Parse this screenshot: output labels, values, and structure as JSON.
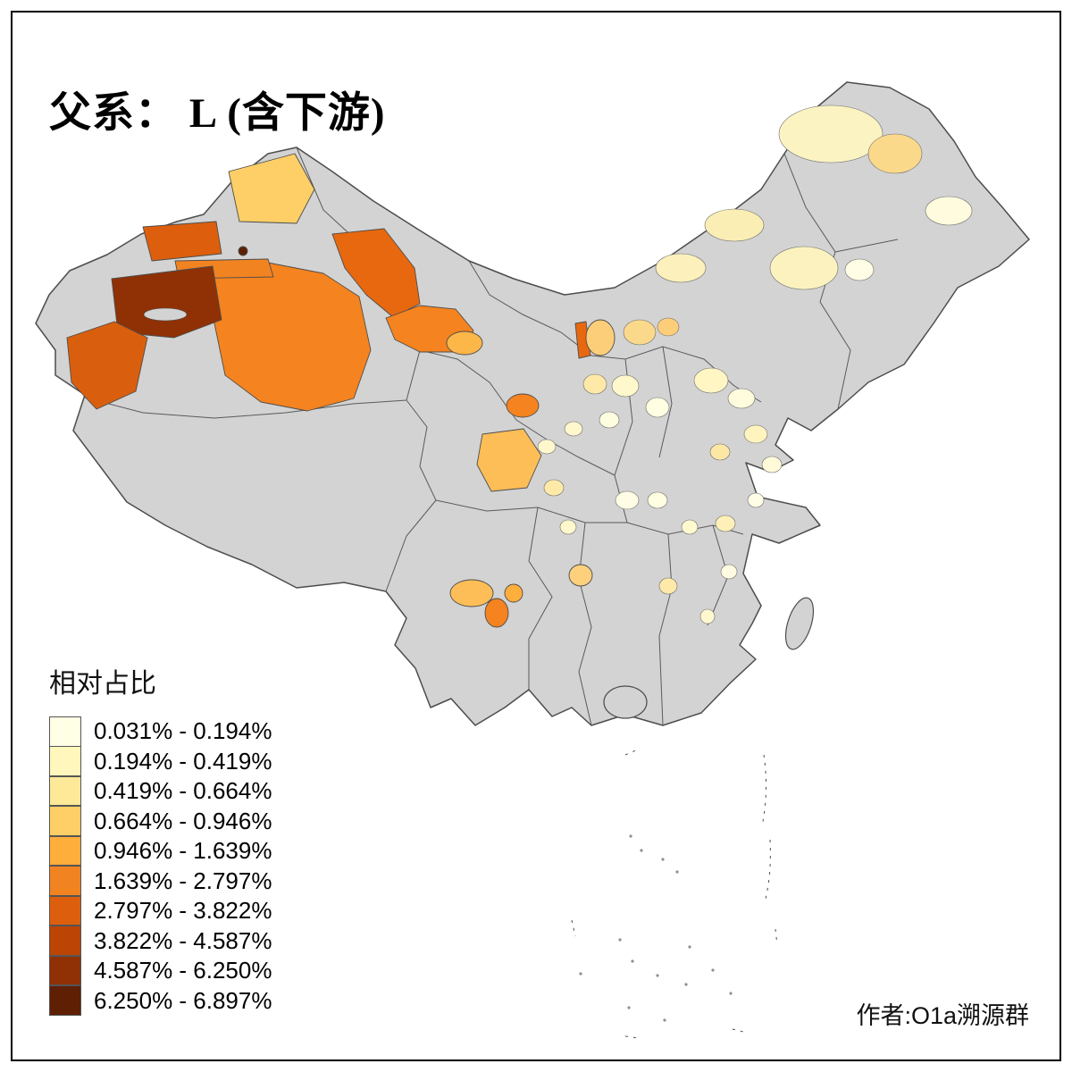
{
  "title": "父系： L (含下游)",
  "legend": {
    "title": "相对占比",
    "items": [
      {
        "label": "0.031% - 0.194%",
        "color": "#FFFFE5"
      },
      {
        "label": "0.194% - 0.419%",
        "color": "#FFF7BC"
      },
      {
        "label": "0.419% - 0.664%",
        "color": "#FEE999"
      },
      {
        "label": "0.664% - 0.946%",
        "color": "#FECF66"
      },
      {
        "label": "0.946% - 1.639%",
        "color": "#FDAE3B"
      },
      {
        "label": "1.639% - 2.797%",
        "color": "#F28321"
      },
      {
        "label": "2.797% - 3.822%",
        "color": "#DD5F0D"
      },
      {
        "label": "3.822% - 4.587%",
        "color": "#BC4405"
      },
      {
        "label": "4.587% - 6.250%",
        "color": "#8F3104"
      },
      {
        "label": "6.250% - 6.897%",
        "color": "#5E1F03"
      }
    ]
  },
  "credit": "作者:O1a溯源群",
  "map": {
    "no_data_fill": "#D3D3D3",
    "boundary_color": "#4D4D4D",
    "background": "#FFFFFF"
  }
}
